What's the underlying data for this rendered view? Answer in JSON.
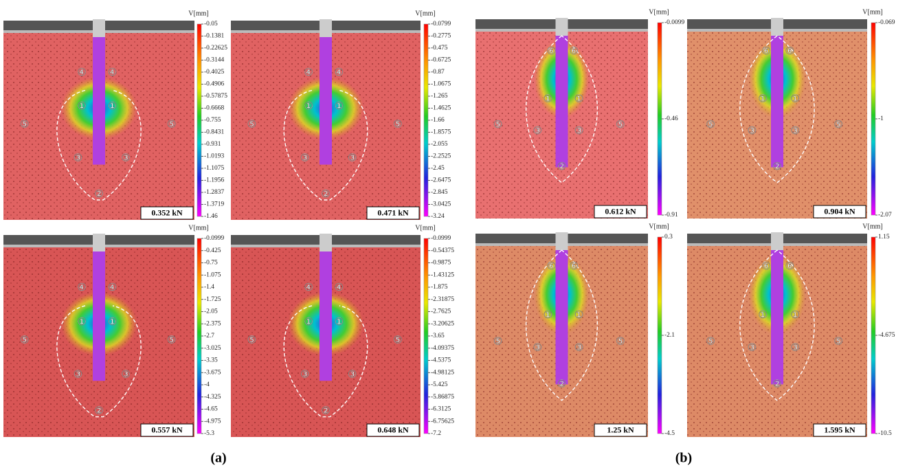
{
  "panels": [
    {
      "load": "0.352 kN",
      "unit": "V[mm]",
      "scale": [
        "-0.05",
        "-0.1381",
        "-0.22625",
        "-0.3144",
        "-0.4025",
        "-0.4906",
        "-0.57875",
        "-0.6668",
        "-0.755",
        "-0.8431",
        "-0.931",
        "-1.0193",
        "-1.1075",
        "-1.1956",
        "-1.2837",
        "-1.3719",
        "-1.46"
      ],
      "regions": [
        "④",
        "④",
        "①",
        "①",
        "⑤",
        "⑤",
        "③",
        "③",
        "②"
      ]
    },
    {
      "load": "0.471 kN",
      "unit": "V[mm]",
      "scale": [
        "-0.0799",
        "-0.2775",
        "-0.475",
        "-0.6725",
        "-0.87",
        "-1.0675",
        "-1.265",
        "-1.4625",
        "-1.66",
        "-1.8575",
        "-2.055",
        "-2.2525",
        "-2.45",
        "-2.6475",
        "-2.845",
        "-3.0425",
        "-3.24"
      ],
      "regions": [
        "④",
        "④",
        "①",
        "①",
        "⑤",
        "⑤",
        "③",
        "③",
        "②"
      ]
    },
    {
      "load": "0.557 kN",
      "unit": "V[mm]",
      "scale": [
        "-0.0999",
        "-0.425",
        "-0.75",
        "-1.075",
        "-1.4",
        "-1.725",
        "-2.05",
        "-2.375",
        "-2.7",
        "-3.025",
        "-3.35",
        "-3.675",
        "-4",
        "-4.325",
        "-4.65",
        "-4.975",
        "-5.3"
      ],
      "regions": [
        "④",
        "④",
        "①",
        "①",
        "⑤",
        "⑤",
        "③",
        "③",
        "②"
      ]
    },
    {
      "load": "0.648 kN",
      "unit": "V[mm]",
      "scale": [
        "-0.0999",
        "-0.54375",
        "-0.9875",
        "-1.43125",
        "-1.875",
        "-2.31875",
        "-2.7625",
        "-3.20625",
        "-3.65",
        "-4.09375",
        "-4.5375",
        "-4.98125",
        "-5.425",
        "-5.86875",
        "-6.3125",
        "-6.75625",
        "-7.2"
      ],
      "regions": [
        "④",
        "④",
        "①",
        "①",
        "⑤",
        "⑤",
        "③",
        "③",
        "②"
      ]
    },
    {
      "load": "0.612 kN",
      "unit": "V[mm]",
      "scale": [
        "-0.0099",
        "-0.46",
        "-0.91"
      ],
      "regions": [
        "⑥",
        "⑥",
        "①",
        "①",
        "⑤",
        "⑤",
        "③",
        "③",
        "②"
      ]
    },
    {
      "load": "0.904 kN",
      "unit": "V[mm]",
      "scale": [
        "-0.069",
        "-1",
        "-2.07"
      ],
      "regions": [
        "⑥",
        "⑥",
        "①",
        "①",
        "⑤",
        "⑤",
        "③",
        "③",
        "②"
      ]
    },
    {
      "load": "1.25 kN",
      "unit": "V[mm]",
      "scale": [
        "0.3",
        "-2.1",
        "-4.5"
      ],
      "regions": [
        "⑥",
        "⑥",
        "①",
        "①",
        "⑤",
        "⑤",
        "③",
        "③",
        "②"
      ]
    },
    {
      "load": "1.595 kN",
      "unit": "V[mm]",
      "scale": [
        "1.15",
        "-4.675",
        "-10.5"
      ],
      "regions": [
        "⑥",
        "⑥",
        "①",
        "①",
        "⑤",
        "⑤",
        "③",
        "③",
        "②"
      ]
    }
  ],
  "captions": [
    "(a)",
    "(b)"
  ]
}
